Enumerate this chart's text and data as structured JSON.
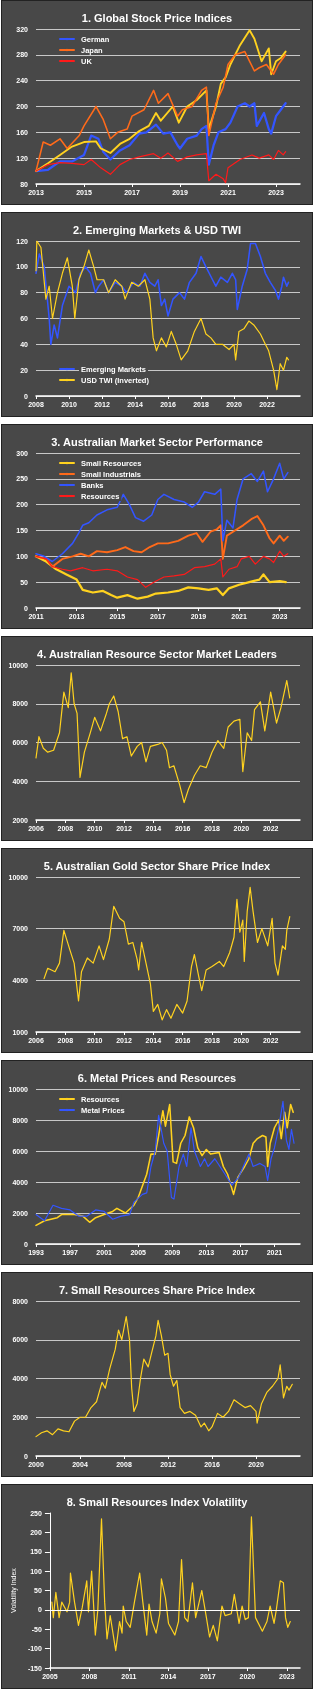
{
  "chart_data": [
    {
      "type": "line",
      "title": "1. Global Stock Price Indices",
      "xlim": [
        2013,
        2024
      ],
      "xticks": [
        2013,
        2015,
        2017,
        2019,
        2021,
        2023
      ],
      "ylim": [
        80,
        320
      ],
      "yticks": [
        80,
        120,
        160,
        200,
        240,
        280,
        320
      ],
      "grid": "y",
      "legend": "top left",
      "series": [
        {
          "name": "German",
          "color": "#3355ff",
          "x": [
            2013,
            2013.5,
            2014,
            2014.5,
            2015,
            2015.3,
            2015.6,
            2015.8,
            2016.1,
            2016.5,
            2016.9,
            2017.3,
            2017.6,
            2018,
            2018.3,
            2018.6,
            2018.9,
            2019,
            2019.3,
            2019.7,
            2019.9,
            2020.1,
            2020.2,
            2020.4,
            2020.6,
            2020.9,
            2021.1,
            2021.4,
            2021.7,
            2021.9,
            2022.1,
            2022.2,
            2022.5,
            2022.7,
            2022.8,
            2023,
            2023.2,
            2023.4
          ],
          "values": [
            100,
            102,
            115,
            115,
            125,
            155,
            150,
            130,
            118,
            132,
            140,
            158,
            160,
            172,
            158,
            160,
            140,
            135,
            150,
            155,
            165,
            170,
            110,
            140,
            160,
            165,
            175,
            200,
            205,
            200,
            205,
            170,
            190,
            165,
            158,
            185,
            195,
            205
          ]
        },
        {
          "color": "#ffd21f",
          "x": [
            2013,
            2013.5,
            2014,
            2014.5,
            2015,
            2015.5,
            2015.7,
            2016.1,
            2016.5,
            2016.9,
            2017.3,
            2017.7,
            2018,
            2018.2,
            2018.7,
            2018.95,
            2019.3,
            2019.7,
            2020.1,
            2020.2,
            2020.5,
            2020.7,
            2020.9,
            2021.1,
            2021.5,
            2021.9,
            2022.1,
            2022.4,
            2022.7,
            2022.8,
            2023,
            2023.2,
            2023.4
          ],
          "values": [
            100,
            112,
            125,
            138,
            145,
            146,
            135,
            128,
            142,
            150,
            162,
            170,
            190,
            178,
            200,
            175,
            200,
            210,
            225,
            165,
            200,
            235,
            245,
            265,
            295,
            318,
            305,
            270,
            290,
            250,
            270,
            275,
            285
          ]
        },
        {
          "name": "Japan",
          "color": "#ff6a1a",
          "x": [
            2013,
            2013.3,
            2013.6,
            2014,
            2014.3,
            2014.8,
            2015,
            2015.5,
            2015.8,
            2016.1,
            2016.4,
            2016.8,
            2017,
            2017.5,
            2017.9,
            2018.1,
            2018.5,
            2018.9,
            2019.1,
            2019.5,
            2019.9,
            2020.1,
            2020.2,
            2020.5,
            2020.8,
            2021,
            2021.3,
            2021.7,
            2021.9,
            2022.1,
            2022.3,
            2022.6,
            2022.9,
            2023.1,
            2023.3,
            2023.4
          ],
          "values": [
            100,
            145,
            140,
            150,
            135,
            155,
            170,
            200,
            180,
            150,
            160,
            165,
            185,
            195,
            225,
            205,
            220,
            185,
            195,
            200,
            225,
            230,
            155,
            205,
            230,
            265,
            280,
            285,
            270,
            255,
            260,
            265,
            250,
            265,
            275,
            280
          ]
        },
        {
          "name": "UK",
          "color": "#ff1a1a",
          "x": [
            2013,
            2013.5,
            2014,
            2014.5,
            2015,
            2015.3,
            2015.7,
            2016.1,
            2016.5,
            2016.9,
            2017.3,
            2017.9,
            2018.2,
            2018.5,
            2018.9,
            2019.3,
            2019.7,
            2020.1,
            2020.2,
            2020.5,
            2020.8,
            2020.9,
            2021,
            2021.5,
            2022,
            2022.3,
            2022.7,
            2022.9,
            2023.1,
            2023.3,
            2023.4
          ],
          "values": [
            100,
            110,
            113,
            112,
            110,
            118,
            105,
            95,
            110,
            118,
            122,
            127,
            120,
            128,
            115,
            122,
            125,
            127,
            85,
            95,
            88,
            82,
            105,
            118,
            125,
            120,
            125,
            118,
            132,
            125,
            130
          ]
        }
      ]
    },
    {
      "type": "line",
      "title": "2. Emerging Markets & USD TWI",
      "xlim": [
        2008,
        2024
      ],
      "xticks": [
        2008,
        2010,
        2012,
        2014,
        2016,
        2018,
        2020,
        2022
      ],
      "ylim": [
        0,
        120
      ],
      "yticks": [
        0,
        20,
        40,
        60,
        80,
        100,
        120
      ],
      "grid": "y",
      "legend": "bottom left",
      "series": [
        {
          "name": "Emerging Markets",
          "color": "#3355ff",
          "x": [
            2008,
            2008.2,
            2008.5,
            2008.8,
            2008.9,
            2009.1,
            2009.3,
            2009.6,
            2010,
            2010.4,
            2010.7,
            2011,
            2011.3,
            2011.6,
            2011.8,
            2012.1,
            2012.4,
            2012.8,
            2013.2,
            2013.5,
            2013.9,
            2014.3,
            2014.6,
            2014.9,
            2015.2,
            2015.4,
            2015.6,
            2015.8,
            2016,
            2016.3,
            2016.7,
            2017,
            2017.3,
            2017.7,
            2018,
            2018.3,
            2018.7,
            2018.9,
            2019.2,
            2019.6,
            2019.9,
            2020.1,
            2020.2,
            2020.5,
            2020.8,
            2021,
            2021.3,
            2021.6,
            2021.9,
            2022.2,
            2022.5,
            2022.7,
            2022.9,
            2023,
            2023.2,
            2023.3
          ],
          "values": [
            95,
            110,
            100,
            60,
            40,
            55,
            45,
            70,
            85,
            80,
            95,
            100,
            95,
            80,
            85,
            90,
            80,
            88,
            85,
            80,
            88,
            85,
            95,
            88,
            85,
            90,
            70,
            75,
            62,
            75,
            80,
            75,
            88,
            95,
            108,
            100,
            90,
            85,
            92,
            88,
            95,
            90,
            67,
            85,
            98,
            118,
            118,
            108,
            95,
            88,
            82,
            75,
            85,
            92,
            85,
            88
          ]
        },
        {
          "name": "USD TWI (Inverted)",
          "color": "#ffd21f",
          "x": [
            2008,
            2008.05,
            2008.3,
            2008.6,
            2008.8,
            2009,
            2009.3,
            2009.6,
            2009.9,
            2010.2,
            2010.35,
            2010.6,
            2010.9,
            2011.2,
            2011.5,
            2011.7,
            2012.1,
            2012.4,
            2012.8,
            2013.2,
            2013.4,
            2013.8,
            2014.2,
            2014.6,
            2014.9,
            2015.1,
            2015.3,
            2015.6,
            2015.9,
            2016.2,
            2016.5,
            2016.8,
            2017.2,
            2017.6,
            2018,
            2018.3,
            2018.6,
            2018.9,
            2019.3,
            2019.7,
            2020,
            2020.1,
            2020.3,
            2020.6,
            2020.9,
            2021.2,
            2021.6,
            2021.9,
            2022.1,
            2022.4,
            2022.6,
            2022.8,
            2023,
            2023.2,
            2023.3
          ],
          "values": [
            97,
            120,
            115,
            75,
            85,
            60,
            80,
            95,
            107,
            85,
            60,
            90,
            100,
            113,
            100,
            90,
            90,
            80,
            90,
            85,
            75,
            88,
            85,
            90,
            75,
            45,
            35,
            45,
            38,
            50,
            40,
            28,
            35,
            50,
            60,
            48,
            45,
            40,
            40,
            36,
            40,
            28,
            50,
            52,
            58,
            55,
            48,
            40,
            35,
            20,
            5,
            25,
            20,
            30,
            28
          ]
        }
      ]
    },
    {
      "type": "line",
      "title": "3. Australian Market Sector Performance",
      "xlim": [
        2011,
        2024
      ],
      "xticks": [
        2011,
        2013,
        2015,
        2017,
        2019,
        2021,
        2023
      ],
      "ylim": [
        0,
        300
      ],
      "yticks": [
        0,
        50,
        100,
        150,
        200,
        250,
        300
      ],
      "grid": "y",
      "legend": "top left",
      "series": [
        {
          "name": "Small Resources",
          "color": "#ffd21f",
          "x": [
            2011,
            2011.5,
            2012,
            2012.5,
            2013,
            2013.3,
            2013.8,
            2014.3,
            2014.7,
            2015,
            2015.5,
            2016,
            2016.5,
            2016.9,
            2017.5,
            2018,
            2018.5,
            2019,
            2019.5,
            2019.9,
            2020.2,
            2020.5,
            2021,
            2021.5,
            2022,
            2022.2,
            2022.5,
            2023,
            2023.3
          ],
          "values": [
            100,
            90,
            75,
            65,
            55,
            35,
            30,
            33,
            25,
            20,
            25,
            18,
            22,
            28,
            30,
            33,
            40,
            38,
            35,
            38,
            25,
            38,
            45,
            50,
            55,
            65,
            50,
            52,
            50
          ]
        },
        {
          "name": "Small Industrials",
          "color": "#ff6a1a",
          "x": [
            2011,
            2011.5,
            2011.8,
            2012.3,
            2012.8,
            2013.2,
            2013.6,
            2014,
            2014.5,
            2015,
            2015.4,
            2015.8,
            2016.2,
            2016.6,
            2017,
            2017.5,
            2018,
            2018.5,
            2018.9,
            2019.2,
            2019.6,
            2019.9,
            2020.1,
            2020.2,
            2020.4,
            2020.8,
            2021.2,
            2021.6,
            2021.9,
            2022.2,
            2022.5,
            2022.7,
            2023,
            2023.2,
            2023.4
          ],
          "values": [
            100,
            95,
            80,
            95,
            100,
            105,
            100,
            110,
            108,
            112,
            118,
            110,
            108,
            118,
            125,
            125,
            130,
            140,
            145,
            128,
            148,
            152,
            160,
            95,
            140,
            150,
            160,
            172,
            178,
            160,
            135,
            125,
            140,
            130,
            138
          ]
        },
        {
          "name": "Banks",
          "color": "#3355ff",
          "x": [
            2011,
            2011.4,
            2011.8,
            2012.3,
            2012.8,
            2013.1,
            2013.3,
            2013.6,
            2014,
            2014.5,
            2015,
            2015.3,
            2015.6,
            2015.9,
            2016.3,
            2016.7,
            2017,
            2017.3,
            2017.8,
            2018.3,
            2018.7,
            2019,
            2019.3,
            2019.8,
            2020.1,
            2020.2,
            2020.4,
            2020.7,
            2020.9,
            2021.2,
            2021.6,
            2021.9,
            2022.2,
            2022.4,
            2022.7,
            2023,
            2023.2,
            2023.4
          ],
          "values": [
            105,
            100,
            90,
            105,
            125,
            145,
            160,
            165,
            180,
            190,
            195,
            220,
            200,
            175,
            168,
            180,
            210,
            220,
            210,
            205,
            195,
            205,
            225,
            220,
            230,
            130,
            170,
            155,
            210,
            250,
            260,
            245,
            265,
            225,
            250,
            280,
            250,
            262
          ]
        },
        {
          "name": "Resources",
          "color": "#ff1a1a",
          "x": [
            2011,
            2011.5,
            2011.8,
            2012.3,
            2012.7,
            2013.3,
            2013.8,
            2014.5,
            2015,
            2015.5,
            2016,
            2016.4,
            2016.8,
            2017.3,
            2017.8,
            2018.3,
            2018.8,
            2019.3,
            2019.8,
            2020.1,
            2020.2,
            2020.5,
            2020.9,
            2021.1,
            2021.5,
            2021.8,
            2022.2,
            2022.5,
            2022.7,
            2023,
            2023.2,
            2023.4
          ],
          "values": [
            100,
            95,
            80,
            75,
            72,
            78,
            72,
            75,
            72,
            60,
            55,
            40,
            50,
            60,
            62,
            65,
            78,
            80,
            85,
            95,
            60,
            75,
            80,
            95,
            100,
            85,
            100,
            95,
            88,
            110,
            100,
            105
          ]
        }
      ]
    },
    {
      "type": "line",
      "title": "4. Australian Resource Sector Market Leaders",
      "xlim": [
        2006,
        2024
      ],
      "xticks": [
        2006,
        2008,
        2010,
        2012,
        2014,
        2016,
        2018,
        2020,
        2022
      ],
      "ylim": [
        2000,
        10000
      ],
      "yticks": [
        2000,
        4000,
        6000,
        8000,
        10000
      ],
      "grid": "y",
      "series": [
        {
          "color": "#ffd21f",
          "x": [
            2006,
            2006.2,
            2006.5,
            2006.8,
            2007.2,
            2007.6,
            2007.9,
            2008.2,
            2008.4,
            2008.6,
            2008.8,
            2009,
            2009.3,
            2009.7,
            2010,
            2010.4,
            2010.8,
            2011,
            2011.3,
            2011.6,
            2011.9,
            2012.2,
            2012.5,
            2012.9,
            2013.2,
            2013.5,
            2013.8,
            2014.3,
            2014.6,
            2014.9,
            2015.1,
            2015.4,
            2015.8,
            2016.1,
            2016.4,
            2016.8,
            2017.2,
            2017.6,
            2018,
            2018.4,
            2018.8,
            2019.1,
            2019.5,
            2019.9,
            2020.1,
            2020.4,
            2020.7,
            2020.9,
            2021.3,
            2021.6,
            2022,
            2022.4,
            2022.7,
            2022.9,
            2023.1,
            2023.3
          ],
          "values": [
            5200,
            6300,
            5700,
            5500,
            5600,
            6500,
            8600,
            7800,
            9600,
            8000,
            7500,
            4200,
            5500,
            6500,
            7300,
            6600,
            7500,
            8000,
            8400,
            7600,
            6200,
            6300,
            5300,
            5800,
            6000,
            5000,
            5800,
            5900,
            6000,
            5600,
            4700,
            4800,
            3800,
            2900,
            3600,
            4300,
            4800,
            4700,
            5500,
            6100,
            5700,
            6800,
            7100,
            7200,
            4500,
            6500,
            6100,
            7700,
            8100,
            6600,
            8600,
            7000,
            7800,
            8500,
            9200,
            8300
          ]
        }
      ]
    },
    {
      "type": "line",
      "title": "5. Australian Gold Sector Share Price Index",
      "xlim": [
        2006,
        2024
      ],
      "xticks": [
        2006,
        2008,
        2010,
        2012,
        2014,
        2016,
        2018,
        2020,
        2022
      ],
      "ylim": [
        1000,
        10000
      ],
      "yticks": [
        1000,
        4000,
        7000,
        10000
      ],
      "grid": "y",
      "series": [
        {
          "color": "#ffd21f",
          "x": [
            2006.55,
            2006.8,
            2007.3,
            2007.6,
            2007.9,
            2008.3,
            2008.6,
            2008.9,
            2009.1,
            2009.5,
            2009.9,
            2010.3,
            2010.6,
            2011,
            2011.3,
            2011.7,
            2012,
            2012.3,
            2012.6,
            2012.9,
            2013,
            2013.2,
            2013.5,
            2013.8,
            2014,
            2014.3,
            2014.6,
            2014.9,
            2015.2,
            2015.6,
            2016,
            2016.3,
            2016.6,
            2016.8,
            2017.1,
            2017.3,
            2017.6,
            2018,
            2018.5,
            2018.8,
            2019.2,
            2019.5,
            2019.7,
            2019.9,
            2020.1,
            2020.2,
            2020.4,
            2020.6,
            2020.8,
            2021.1,
            2021.4,
            2021.8,
            2022.1,
            2022.3,
            2022.5,
            2022.8,
            2023,
            2023.1,
            2023.3
          ],
          "values": [
            4100,
            4700,
            4500,
            5000,
            6900,
            5800,
            5000,
            2800,
            4500,
            5300,
            5000,
            6000,
            5200,
            6400,
            8300,
            7600,
            7400,
            6100,
            6200,
            5200,
            4600,
            6200,
            5000,
            3800,
            2200,
            2600,
            1700,
            2300,
            1800,
            2600,
            2100,
            2800,
            4800,
            5500,
            4200,
            3400,
            4600,
            4800,
            5100,
            4800,
            5600,
            6500,
            8700,
            6800,
            7500,
            5100,
            8000,
            9400,
            8000,
            6200,
            7000,
            6000,
            7600,
            5000,
            4300,
            6000,
            5800,
            6900,
            7700
          ]
        }
      ]
    },
    {
      "type": "line",
      "title": "6. Metal Prices and Resources",
      "xlim": [
        1993,
        2024
      ],
      "xticks": [
        1993,
        1997,
        2001,
        2005,
        2009,
        2013,
        2017,
        2021
      ],
      "ylim": [
        0,
        10000
      ],
      "yticks": [
        0,
        2000,
        4000,
        6000,
        8000,
        10000
      ],
      "grid": "y",
      "legend": "top left",
      "series": [
        {
          "name": "Resources",
          "color": "#ffd21f",
          "x": [
            1993,
            1994,
            1995.5,
            1996,
            1997.5,
            1998.5,
            1999.3,
            2000,
            2001,
            2002,
            2002.5,
            2003.5,
            2004.5,
            2005,
            2006,
            2006.5,
            2007,
            2007.4,
            2007.9,
            2008.2,
            2008.7,
            2009.1,
            2009.5,
            2010,
            2010.5,
            2011,
            2011.5,
            2012,
            2012.5,
            2013,
            2013.5,
            2014.5,
            2015,
            2015.5,
            2016.2,
            2016.7,
            2017.5,
            2018,
            2018.5,
            2019,
            2019.6,
            2020,
            2020.2,
            2020.5,
            2021,
            2021.5,
            2021.8,
            2022.2,
            2022.5,
            2022.9,
            2023.2
          ],
          "values": [
            1200,
            1500,
            1700,
            1900,
            1900,
            1800,
            1400,
            1700,
            1900,
            2100,
            2300,
            2000,
            2500,
            3000,
            4500,
            5800,
            5800,
            7000,
            8600,
            7600,
            9000,
            5300,
            5200,
            6500,
            7000,
            8200,
            7500,
            6200,
            5700,
            6100,
            5800,
            5900,
            5000,
            4500,
            3200,
            4300,
            5000,
            5500,
            6500,
            6800,
            7000,
            6900,
            5000,
            6500,
            7500,
            8000,
            6800,
            8500,
            7500,
            9000,
            8500
          ]
        },
        {
          "name": "Metal Prices",
          "color": "#3355ff",
          "x": [
            1993,
            1994,
            1995,
            1996,
            1997,
            1998,
            1999,
            2000,
            2001,
            2002,
            2003,
            2004,
            2004.5,
            2005.5,
            2006,
            2006.5,
            2007,
            2007.4,
            2008,
            2008.4,
            2008.9,
            2009.2,
            2009.8,
            2010.3,
            2010.7,
            2011.2,
            2011.6,
            2012.3,
            2012.8,
            2013.2,
            2014,
            2014.6,
            2015.2,
            2016,
            2016.8,
            2017.5,
            2018,
            2018.5,
            2019.3,
            2019.9,
            2020.2,
            2020.6,
            2021,
            2021.5,
            2022,
            2022.4,
            2022.7,
            2023,
            2023.3
          ],
          "values": [
            1900,
            1500,
            2500,
            2300,
            2200,
            1800,
            1800,
            2200,
            2100,
            1600,
            1800,
            1900,
            2700,
            3200,
            3300,
            5000,
            6000,
            8300,
            6500,
            6000,
            3000,
            2900,
            5000,
            5800,
            5000,
            7500,
            6000,
            5000,
            5500,
            5000,
            5500,
            5000,
            4500,
            3800,
            4300,
            5200,
            5800,
            5000,
            5200,
            5000,
            4100,
            5500,
            6200,
            7500,
            9200,
            6700,
            6100,
            7400,
            6500
          ]
        }
      ]
    },
    {
      "type": "line",
      "title": "7. Small Resources Share Price Index",
      "xlim": [
        2000,
        2024
      ],
      "xticks": [
        2000,
        2004,
        2008,
        2012,
        2016,
        2020
      ],
      "ylim": [
        0,
        8000
      ],
      "yticks": [
        0,
        2000,
        4000,
        6000,
        8000
      ],
      "grid": "y",
      "series": [
        {
          "color": "#ffd21f",
          "x": [
            2000,
            2000.5,
            2001,
            2001.5,
            2002,
            2002.5,
            2003,
            2003.5,
            2004,
            2004.5,
            2005,
            2005.5,
            2006,
            2006.3,
            2006.7,
            2007.2,
            2007.5,
            2007.8,
            2008.2,
            2008.5,
            2008.7,
            2008.9,
            2009.2,
            2009.5,
            2009.8,
            2010.2,
            2010.5,
            2010.9,
            2011.1,
            2011.4,
            2011.7,
            2012,
            2012.2,
            2012.5,
            2012.8,
            2013.1,
            2013.5,
            2014,
            2014.5,
            2015,
            2015.3,
            2015.7,
            2016,
            2016.5,
            2017,
            2017.5,
            2018,
            2018.5,
            2019,
            2019.5,
            2020,
            2020.1,
            2020.5,
            2021,
            2021.5,
            2022,
            2022.2,
            2022.5,
            2022.8,
            2023,
            2023.3
          ],
          "values": [
            1000,
            1200,
            1300,
            1100,
            1400,
            1300,
            1250,
            1800,
            2000,
            2000,
            2500,
            2800,
            3800,
            3500,
            4500,
            5500,
            6500,
            6000,
            7200,
            6000,
            3500,
            2300,
            2700,
            4000,
            5000,
            4600,
            5300,
            6200,
            7000,
            6200,
            5200,
            5300,
            4200,
            3600,
            3900,
            2500,
            2200,
            2300,
            2100,
            1500,
            1700,
            1300,
            1500,
            2200,
            2000,
            2300,
            2900,
            2700,
            2500,
            2600,
            2300,
            1700,
            2700,
            3300,
            3600,
            4000,
            4700,
            3000,
            3600,
            3400,
            3700
          ]
        }
      ]
    },
    {
      "type": "line",
      "title": "8. Small Resources Index Volatility",
      "ylabel": "Volatility Index",
      "xlim": [
        2005,
        2024
      ],
      "xticks": [
        2005,
        2008,
        2011,
        2014,
        2017,
        2020,
        2023
      ],
      "ylim": [
        -150,
        250
      ],
      "yticks": [
        -150,
        -100,
        -50,
        0,
        50,
        100,
        150,
        200,
        250
      ],
      "ref_lines": [
        {
          "axis": "y",
          "value": 0,
          "color": "#ffffff"
        }
      ],
      "series": [
        {
          "color": "#ffd21f",
          "x": [
            2005.15,
            2005.26,
            2005.45,
            2005.7,
            2005.9,
            2006.3,
            2006.5,
            2006.56,
            2006.87,
            2007.17,
            2007.45,
            2007.8,
            2007.93,
            2008.17,
            2008.45,
            2008.64,
            2008.92,
            2009.16,
            2009.34,
            2009.58,
            2010,
            2010.29,
            2010.48,
            2010.57,
            2010.8,
            2011.1,
            2011.42,
            2011.82,
            2012.06,
            2012.36,
            2012.53,
            2012.76,
            2013.07,
            2013.35,
            2013.47,
            2013.78,
            2014.01,
            2014.49,
            2014.77,
            2015,
            2015.24,
            2015.48,
            2015.83,
            2016.07,
            2016.54,
            2016.89,
            2017.13,
            2017.41,
            2017.72,
            2018.07,
            2018.31,
            2018.78,
            2019.01,
            2019.37,
            2019.6,
            2019.84,
            2020.08,
            2020.31,
            2020.62,
            2021.14,
            2021.49,
            2021.73,
            2022.03,
            2022.2,
            2022.5,
            2022.74,
            2022.9,
            2023.07,
            2023.26
          ],
          "values": [
            20,
            -20,
            45,
            -20,
            20,
            -5,
            20,
            95,
            20,
            -40,
            5,
            75,
            -5,
            100,
            -65,
            0,
            235,
            20,
            -75,
            -15,
            -105,
            -30,
            -60,
            10,
            -30,
            -45,
            20,
            95,
            20,
            -65,
            15,
            -30,
            -60,
            -10,
            80,
            30,
            -35,
            -65,
            -30,
            130,
            -20,
            -30,
            70,
            -20,
            50,
            -20,
            -70,
            -40,
            -80,
            10,
            -15,
            -10,
            40,
            -35,
            10,
            -25,
            -20,
            240,
            -20,
            -55,
            -30,
            10,
            -35,
            0,
            75,
            70,
            -20,
            -45,
            -30
          ]
        }
      ]
    }
  ]
}
